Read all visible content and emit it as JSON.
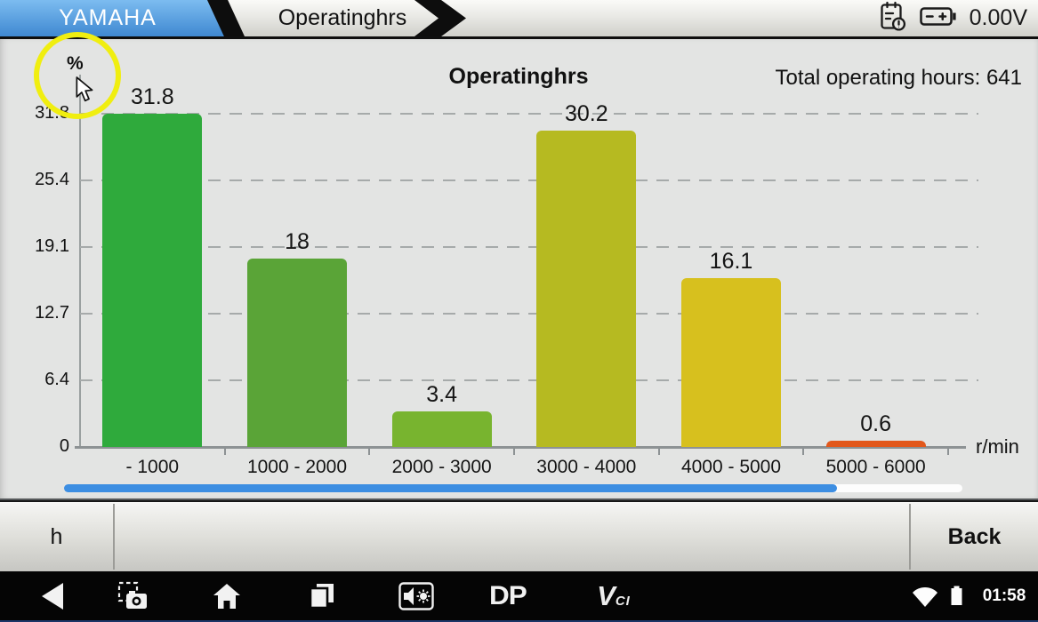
{
  "top_bar": {
    "brand_tab": "YAMAHA",
    "function_tab": "Operatinghrs",
    "voltage": "0.00V",
    "icons": {
      "report": "report-clock-icon",
      "battery": "battery-terminals-icon"
    },
    "brand_tab_color": "#3f88d1"
  },
  "chart": {
    "title": "Operatinghrs",
    "total_label": "Total operating hours: 641",
    "y_unit": "%",
    "x_unit": "r/min"
  },
  "chart_data": {
    "type": "bar",
    "title": "Operatinghrs",
    "categories": [
      "- 1000",
      "1000 - 2000",
      "2000 - 3000",
      "3000 - 4000",
      "4000 - 5000",
      "5000 - 6000"
    ],
    "values": [
      31.8,
      18,
      3.4,
      30.2,
      16.1,
      0.6
    ],
    "value_labels": [
      "31.8",
      "18",
      "3.4",
      "30.2",
      "16.1",
      "0.6"
    ],
    "bar_colors": [
      "#2faa3c",
      "#5aa437",
      "#78b42f",
      "#b6ba21",
      "#d7c01e",
      "#e2581c"
    ],
    "xlabel": "r/min",
    "ylabel": "%",
    "ylim": [
      0,
      31.8
    ],
    "yticks": [
      0,
      6.4,
      12.7,
      19.1,
      25.4,
      31.8
    ],
    "grid": "dashed-horizontal",
    "legend": "none",
    "annotation": "Total operating hours: 641"
  },
  "scrollbar": {
    "filled_ratio": 0.86,
    "fill_color": "#3d8ee2"
  },
  "annotation_overlay": {
    "highlight_target": "percent-unit-label",
    "circle_color": "#f0ee10"
  },
  "toolbar": {
    "unit_button": "h",
    "back_button": "Back"
  },
  "nav_bar": {
    "time": "01:58",
    "dp_logo": "DP",
    "vci_logo_big": "V",
    "vci_logo_small": "CI",
    "icons": [
      "back",
      "screenshot",
      "home",
      "recents",
      "volume-brightness",
      "wifi",
      "battery"
    ]
  }
}
